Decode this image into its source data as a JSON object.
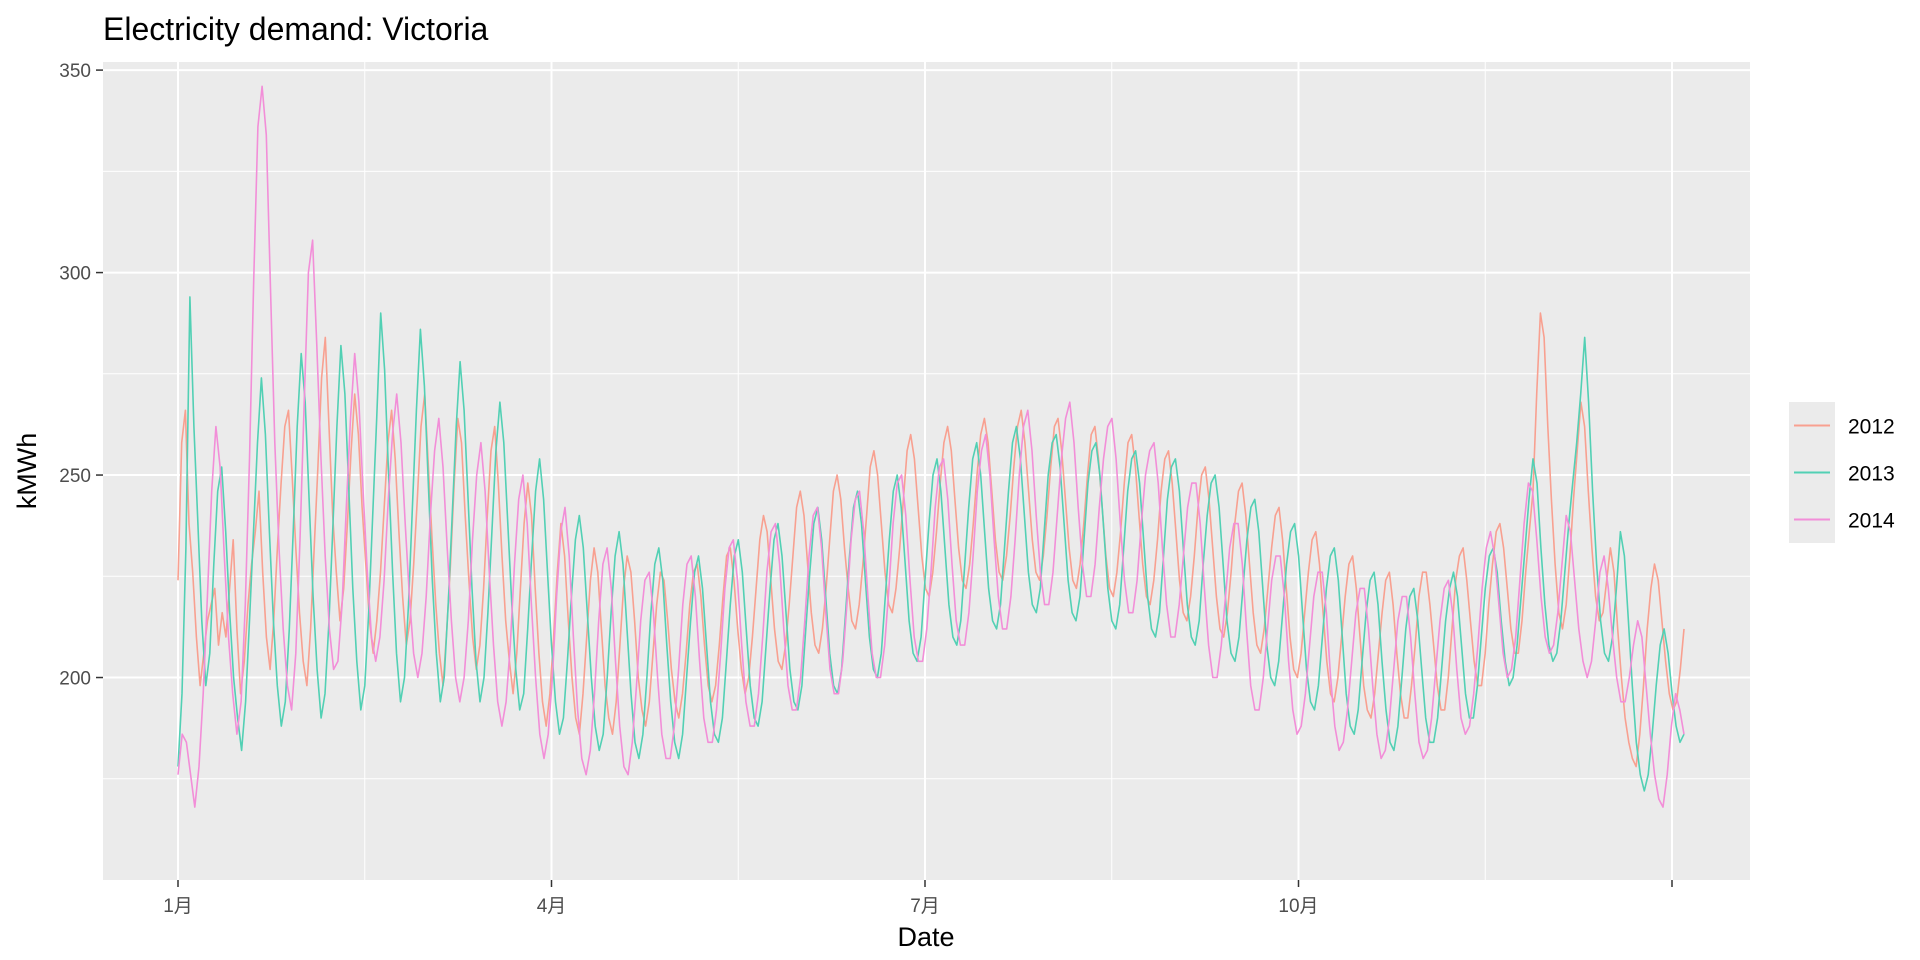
{
  "chart_data": {
    "type": "line",
    "title": "Electricity demand: Victoria",
    "xlabel": "Date",
    "ylabel": "kMWh",
    "x_ticks": [
      "1月",
      "4月",
      "7月",
      "10月"
    ],
    "y_ticks": [
      200,
      250,
      300,
      350
    ],
    "ylim": [
      150,
      352
    ],
    "legend_position": "right",
    "grid": true,
    "series": [
      {
        "name": "2012",
        "color": "#F8A090",
        "values": [
          224,
          258,
          266,
          238,
          226,
          210,
          198,
          206,
          214,
          218,
          222,
          208,
          216,
          210,
          222,
          234,
          212,
          196,
          204,
          218,
          228,
          236,
          246,
          226,
          210,
          202,
          214,
          232,
          248,
          262,
          266,
          250,
          232,
          216,
          204,
          198,
          212,
          232,
          252,
          274,
          284,
          262,
          240,
          226,
          214,
          222,
          238,
          256,
          270,
          260,
          242,
          228,
          214,
          206,
          214,
          226,
          242,
          258,
          266,
          254,
          236,
          220,
          208,
          214,
          228,
          244,
          262,
          270,
          252,
          234,
          218,
          206,
          198,
          212,
          228,
          248,
          264,
          258,
          240,
          224,
          210,
          202,
          208,
          222,
          240,
          256,
          262,
          248,
          230,
          214,
          204,
          196,
          206,
          222,
          238,
          248,
          240,
          222,
          206,
          194,
          188,
          196,
          210,
          226,
          238,
          230,
          214,
          200,
          190,
          186,
          196,
          210,
          224,
          232,
          226,
          212,
          198,
          190,
          186,
          194,
          208,
          222,
          230,
          226,
          214,
          200,
          192,
          188,
          194,
          206,
          218,
          226,
          224,
          214,
          202,
          194,
          190,
          196,
          206,
          218,
          226,
          228,
          220,
          208,
          198,
          194,
          198,
          208,
          220,
          230,
          232,
          224,
          212,
          202,
          196,
          200,
          210,
          222,
          234,
          240,
          236,
          224,
          212,
          204,
          202,
          208,
          218,
          230,
          242,
          246,
          240,
          228,
          216,
          208,
          206,
          212,
          222,
          234,
          246,
          250,
          244,
          232,
          222,
          214,
          212,
          218,
          228,
          240,
          252,
          256,
          250,
          238,
          226,
          218,
          216,
          222,
          232,
          244,
          256,
          260,
          254,
          242,
          230,
          222,
          220,
          226,
          236,
          248,
          258,
          262,
          256,
          244,
          232,
          224,
          222,
          228,
          238,
          250,
          260,
          264,
          258,
          246,
          234,
          226,
          224,
          230,
          240,
          252,
          262,
          266,
          258,
          246,
          234,
          226,
          224,
          230,
          240,
          252,
          262,
          264,
          256,
          244,
          232,
          224,
          222,
          228,
          238,
          250,
          260,
          262,
          254,
          242,
          230,
          222,
          220,
          226,
          236,
          248,
          258,
          260,
          252,
          240,
          228,
          220,
          218,
          224,
          234,
          246,
          254,
          256,
          248,
          236,
          224,
          216,
          214,
          220,
          230,
          242,
          250,
          252,
          244,
          232,
          220,
          212,
          210,
          216,
          226,
          238,
          246,
          248,
          240,
          228,
          216,
          208,
          206,
          212,
          222,
          232,
          240,
          242,
          234,
          222,
          210,
          202,
          200,
          206,
          216,
          226,
          234,
          236,
          228,
          216,
          204,
          196,
          194,
          200,
          210,
          220,
          228,
          230,
          222,
          210,
          198,
          192,
          190,
          196,
          206,
          216,
          224,
          226,
          218,
          206,
          196,
          190,
          190,
          198,
          208,
          220,
          226,
          226,
          218,
          208,
          198,
          192,
          192,
          200,
          212,
          224,
          230,
          232,
          224,
          214,
          204,
          198,
          198,
          206,
          218,
          228,
          236,
          238,
          232,
          222,
          212,
          206,
          206,
          214,
          226,
          236,
          246,
          270,
          290,
          284,
          262,
          244,
          228,
          216,
          212,
          218,
          230,
          244,
          256,
          268,
          262,
          246,
          232,
          220,
          214,
          216,
          224,
          232,
          226,
          212,
          200,
          190,
          184,
          180,
          178,
          186,
          198,
          212,
          222,
          228,
          224,
          214,
          204,
          196,
          192,
          194,
          202,
          212
        ]
      },
      {
        "name": "2013",
        "color": "#52D0B4",
        "values": [
          178,
          196,
          232,
          294,
          262,
          238,
          214,
          198,
          206,
          228,
          246,
          252,
          236,
          216,
          200,
          190,
          182,
          194,
          214,
          236,
          258,
          274,
          260,
          236,
          214,
          198,
          188,
          194,
          212,
          236,
          262,
          280,
          268,
          244,
          220,
          202,
          190,
          196,
          214,
          238,
          262,
          282,
          270,
          246,
          222,
          204,
          192,
          198,
          216,
          240,
          264,
          290,
          276,
          250,
          226,
          206,
          194,
          200,
          218,
          242,
          266,
          286,
          272,
          248,
          224,
          206,
          194,
          200,
          218,
          240,
          262,
          278,
          266,
          244,
          222,
          204,
          194,
          200,
          216,
          236,
          256,
          268,
          258,
          238,
          218,
          202,
          192,
          196,
          212,
          230,
          246,
          254,
          244,
          226,
          208,
          194,
          186,
          190,
          204,
          220,
          234,
          240,
          232,
          216,
          200,
          188,
          182,
          186,
          200,
          216,
          230,
          236,
          228,
          212,
          196,
          184,
          180,
          186,
          200,
          216,
          228,
          232,
          224,
          208,
          194,
          184,
          180,
          186,
          200,
          214,
          226,
          230,
          222,
          208,
          194,
          186,
          184,
          190,
          204,
          218,
          230,
          234,
          226,
          212,
          198,
          190,
          188,
          194,
          208,
          222,
          234,
          238,
          230,
          216,
          202,
          194,
          192,
          198,
          212,
          226,
          238,
          242,
          234,
          220,
          206,
          198,
          196,
          202,
          216,
          230,
          242,
          246,
          238,
          224,
          210,
          202,
          200,
          206,
          220,
          234,
          246,
          250,
          242,
          228,
          214,
          206,
          204,
          210,
          224,
          238,
          250,
          254,
          246,
          232,
          218,
          210,
          208,
          214,
          228,
          242,
          254,
          258,
          250,
          236,
          222,
          214,
          212,
          218,
          232,
          246,
          258,
          262,
          254,
          240,
          226,
          218,
          216,
          222,
          236,
          250,
          258,
          260,
          252,
          238,
          224,
          216,
          214,
          220,
          234,
          248,
          256,
          258,
          250,
          236,
          222,
          214,
          212,
          218,
          232,
          246,
          254,
          256,
          248,
          234,
          220,
          212,
          210,
          216,
          230,
          244,
          252,
          254,
          246,
          232,
          218,
          210,
          208,
          214,
          228,
          240,
          248,
          250,
          242,
          228,
          214,
          206,
          204,
          210,
          222,
          234,
          242,
          244,
          236,
          222,
          208,
          200,
          198,
          204,
          216,
          228,
          236,
          238,
          230,
          216,
          202,
          194,
          192,
          198,
          210,
          222,
          230,
          232,
          224,
          210,
          196,
          188,
          186,
          192,
          204,
          216,
          224,
          226,
          218,
          204,
          192,
          184,
          182,
          188,
          200,
          212,
          220,
          222,
          214,
          202,
          190,
          184,
          184,
          190,
          202,
          214,
          222,
          226,
          220,
          208,
          196,
          190,
          190,
          198,
          210,
          222,
          230,
          232,
          226,
          214,
          204,
          198,
          200,
          208,
          220,
          232,
          244,
          254,
          248,
          232,
          218,
          208,
          204,
          206,
          214,
          226,
          238,
          248,
          258,
          270,
          284,
          268,
          246,
          228,
          214,
          206,
          204,
          210,
          222,
          236,
          230,
          214,
          198,
          184,
          176,
          172,
          176,
          186,
          198,
          208,
          212,
          206,
          196,
          188,
          184,
          186
        ]
      },
      {
        "name": "2014",
        "color": "#F28ED8",
        "values": [
          176,
          186,
          184,
          176,
          168,
          178,
          196,
          220,
          246,
          262,
          252,
          230,
          210,
          196,
          186,
          194,
          218,
          254,
          298,
          336,
          346,
          334,
          296,
          258,
          232,
          212,
          198,
          192,
          206,
          234,
          268,
          300,
          308,
          282,
          254,
          230,
          212,
          202,
          204,
          218,
          242,
          264,
          280,
          268,
          246,
          226,
          210,
          204,
          210,
          224,
          244,
          260,
          270,
          258,
          238,
          220,
          206,
          200,
          206,
          220,
          240,
          256,
          264,
          252,
          232,
          214,
          200,
          194,
          200,
          214,
          234,
          250,
          258,
          246,
          226,
          208,
          194,
          188,
          194,
          208,
          228,
          244,
          250,
          238,
          218,
          200,
          186,
          180,
          186,
          200,
          220,
          236,
          242,
          230,
          210,
          192,
          180,
          176,
          182,
          196,
          214,
          228,
          232,
          222,
          204,
          188,
          178,
          176,
          184,
          198,
          214,
          224,
          226,
          216,
          200,
          186,
          180,
          180,
          188,
          202,
          218,
          228,
          230,
          220,
          204,
          190,
          184,
          184,
          192,
          206,
          222,
          232,
          234,
          224,
          208,
          194,
          188,
          188,
          196,
          210,
          226,
          236,
          238,
          228,
          212,
          198,
          192,
          192,
          200,
          214,
          230,
          240,
          242,
          232,
          216,
          202,
          196,
          196,
          204,
          218,
          234,
          244,
          246,
          236,
          220,
          206,
          200,
          200,
          208,
          222,
          238,
          248,
          250,
          240,
          224,
          210,
          204,
          204,
          212,
          226,
          242,
          252,
          254,
          244,
          228,
          214,
          208,
          208,
          216,
          230,
          246,
          256,
          260,
          250,
          234,
          220,
          212,
          212,
          220,
          234,
          250,
          262,
          266,
          256,
          240,
          226,
          218,
          218,
          226,
          240,
          254,
          264,
          268,
          258,
          242,
          228,
          220,
          220,
          228,
          242,
          254,
          262,
          264,
          254,
          238,
          224,
          216,
          216,
          224,
          238,
          250,
          256,
          258,
          248,
          232,
          218,
          210,
          210,
          218,
          230,
          242,
          248,
          248,
          238,
          222,
          208,
          200,
          200,
          208,
          220,
          232,
          238,
          238,
          228,
          212,
          198,
          192,
          192,
          200,
          212,
          224,
          230,
          230,
          220,
          204,
          192,
          186,
          188,
          196,
          208,
          220,
          226,
          226,
          216,
          200,
          188,
          182,
          184,
          192,
          204,
          216,
          222,
          222,
          212,
          198,
          186,
          180,
          182,
          190,
          202,
          214,
          220,
          220,
          210,
          196,
          184,
          180,
          182,
          190,
          202,
          214,
          222,
          224,
          216,
          202,
          190,
          186,
          188,
          196,
          208,
          222,
          232,
          236,
          230,
          218,
          206,
          200,
          202,
          210,
          224,
          238,
          248,
          246,
          234,
          220,
          210,
          206,
          208,
          216,
          228,
          240,
          236,
          224,
          212,
          204,
          200,
          204,
          214,
          226,
          230,
          222,
          210,
          200,
          194,
          194,
          200,
          208,
          214,
          210,
          198,
          186,
          176,
          170,
          168,
          176,
          188,
          196,
          192,
          186
        ]
      }
    ]
  }
}
